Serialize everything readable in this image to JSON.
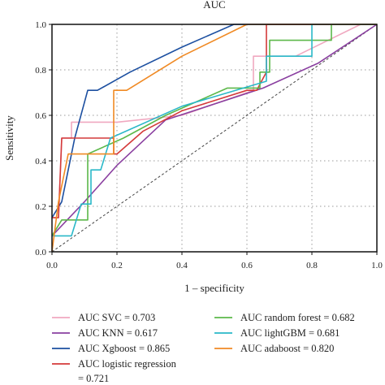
{
  "chart_data": {
    "type": "line",
    "title": "AUC",
    "xlabel": "1 – specificity",
    "ylabel": "Sensitivity",
    "xlim": [
      0,
      1
    ],
    "ylim": [
      0,
      1
    ],
    "x_ticks": [
      0.0,
      0.2,
      0.4,
      0.6,
      0.8,
      1.0
    ],
    "y_ticks": [
      0.0,
      0.2,
      0.4,
      0.6,
      0.8,
      1.0
    ],
    "x_tick_labels": [
      "0.0",
      "0.2",
      "0.4",
      "0.6",
      "0.8",
      "1.0"
    ],
    "y_tick_labels": [
      "0.0",
      "0.2",
      "0.4",
      "0.6",
      "0.8",
      "1.0"
    ],
    "grid": true,
    "legend_position": "bottom",
    "series": [
      {
        "name": "AUC SVC = 0.703",
        "color": "#f0a8c0",
        "points": [
          [
            0,
            0.15
          ],
          [
            0.02,
            0.15
          ],
          [
            0.03,
            0.5
          ],
          [
            0.06,
            0.5
          ],
          [
            0.06,
            0.57
          ],
          [
            0.2,
            0.57
          ],
          [
            0.4,
            0.6
          ],
          [
            0.62,
            0.71
          ],
          [
            0.62,
            0.86
          ],
          [
            0.68,
            0.86
          ],
          [
            0.75,
            0.86
          ],
          [
            0.95,
            1.0
          ],
          [
            1,
            1
          ]
        ]
      },
      {
        "name": "AUC KNN = 0.617",
        "color": "#8a3fa0",
        "points": [
          [
            0,
            0.07
          ],
          [
            0.1,
            0.22
          ],
          [
            0.2,
            0.38
          ],
          [
            0.35,
            0.58
          ],
          [
            0.5,
            0.65
          ],
          [
            0.65,
            0.72
          ],
          [
            0.82,
            0.83
          ],
          [
            1,
            1
          ]
        ]
      },
      {
        "name": "AUC Xgboost = 0.865",
        "color": "#1c4fa0",
        "points": [
          [
            0,
            0.15
          ],
          [
            0.03,
            0.22
          ],
          [
            0.05,
            0.36
          ],
          [
            0.07,
            0.5
          ],
          [
            0.11,
            0.71
          ],
          [
            0.14,
            0.71
          ],
          [
            0.24,
            0.79
          ],
          [
            0.4,
            0.9
          ],
          [
            0.56,
            1.0
          ],
          [
            0.6,
            1.0
          ],
          [
            1,
            1
          ]
        ]
      },
      {
        "name": "AUC logistic regression = 0.721",
        "color": "#d43a3a",
        "points": [
          [
            0,
            0.15
          ],
          [
            0.02,
            0.15
          ],
          [
            0.03,
            0.5
          ],
          [
            0.06,
            0.5
          ],
          [
            0.19,
            0.5
          ],
          [
            0.19,
            0.43
          ],
          [
            0.2,
            0.43
          ],
          [
            0.28,
            0.53
          ],
          [
            0.4,
            0.62
          ],
          [
            0.6,
            0.71
          ],
          [
            0.63,
            0.71
          ],
          [
            0.66,
            0.79
          ],
          [
            0.66,
            1.0
          ],
          [
            1,
            1
          ]
        ]
      },
      {
        "name": "AUC random forest = 0.682",
        "color": "#5cb84a",
        "points": [
          [
            0,
            0.07
          ],
          [
            0.03,
            0.14
          ],
          [
            0.11,
            0.14
          ],
          [
            0.11,
            0.43
          ],
          [
            0.22,
            0.5
          ],
          [
            0.35,
            0.6
          ],
          [
            0.54,
            0.72
          ],
          [
            0.64,
            0.72
          ],
          [
            0.64,
            0.79
          ],
          [
            0.67,
            0.79
          ],
          [
            0.67,
            0.93
          ],
          [
            0.86,
            0.93
          ],
          [
            0.86,
            1.0
          ],
          [
            1,
            1
          ]
        ]
      },
      {
        "name": "AUC lightGBM = 0.681",
        "color": "#2ab8c8",
        "points": [
          [
            0,
            0.07
          ],
          [
            0.06,
            0.07
          ],
          [
            0.09,
            0.21
          ],
          [
            0.12,
            0.21
          ],
          [
            0.12,
            0.36
          ],
          [
            0.15,
            0.36
          ],
          [
            0.18,
            0.5
          ],
          [
            0.4,
            0.64
          ],
          [
            0.66,
            0.75
          ],
          [
            0.66,
            0.86
          ],
          [
            0.8,
            0.86
          ],
          [
            0.8,
            1.0
          ],
          [
            1,
            1
          ]
        ]
      },
      {
        "name": "AUC adaboost = 0.820",
        "color": "#f08a24",
        "points": [
          [
            0,
            0.0
          ],
          [
            0.02,
            0.22
          ],
          [
            0.05,
            0.43
          ],
          [
            0.19,
            0.43
          ],
          [
            0.19,
            0.71
          ],
          [
            0.23,
            0.71
          ],
          [
            0.4,
            0.86
          ],
          [
            0.6,
            1.0
          ],
          [
            1,
            1
          ]
        ]
      }
    ],
    "reference_line": {
      "points": [
        [
          0,
          0
        ],
        [
          1,
          1
        ]
      ],
      "color": "#444444",
      "style": "dashed"
    }
  }
}
